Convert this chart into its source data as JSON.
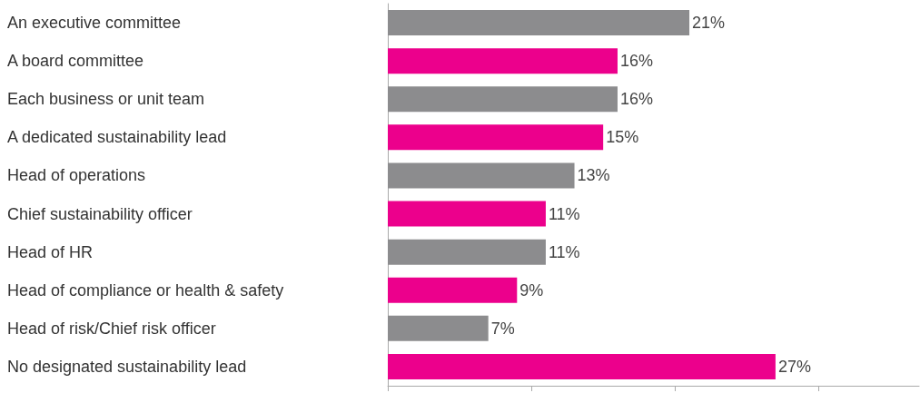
{
  "chart_data": {
    "type": "bar",
    "orientation": "horizontal",
    "categories": [
      "An executive committee",
      "A board committee",
      "Each business or unit team",
      "A dedicated sustainability lead",
      "Head of operations",
      "Chief sustainability officer",
      "Head of HR",
      "Head of compliance or health & safety",
      "Head of risk/Chief risk officer",
      "No designated sustainability lead"
    ],
    "values": [
      21,
      16,
      16,
      15,
      13,
      11,
      11,
      9,
      7,
      27
    ],
    "colors": [
      "#8c8c8e",
      "#ec008c",
      "#8c8c8e",
      "#ec008c",
      "#8c8c8e",
      "#ec008c",
      "#8c8c8e",
      "#ec008c",
      "#8c8c8e",
      "#ec008c"
    ],
    "value_labels": [
      "21%",
      "16%",
      "16%",
      "15%",
      "13%",
      "11%",
      "11%",
      "9%",
      "7%",
      "27%"
    ],
    "xlim": [
      0,
      37
    ],
    "xticks": [
      {
        "value": 0,
        "label": null
      },
      {
        "value": 10,
        "label": null
      },
      {
        "value": 20,
        "label": null
      },
      {
        "value": 30,
        "label": null
      }
    ],
    "grid": false
  }
}
